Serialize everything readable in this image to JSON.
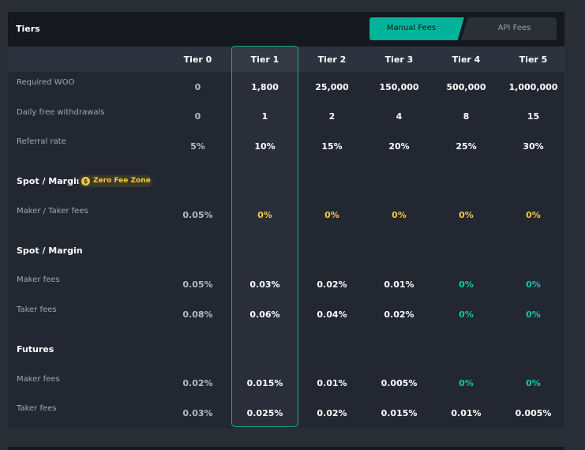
{
  "header": {
    "title": "Tiers"
  },
  "tabs": [
    {
      "label": "Manual Fees",
      "active": true
    },
    {
      "label": "API Fees",
      "active": false
    }
  ],
  "columns": [
    "Tier 0",
    "Tier 1",
    "Tier 2",
    "Tier 3",
    "Tier 4",
    "Tier 5"
  ],
  "general_rows": [
    {
      "label": "Required WOO",
      "values": [
        "0",
        "1,800",
        "25,000",
        "150,000",
        "500,000",
        "1,000,000"
      ]
    },
    {
      "label": "Daily free withdrawals",
      "values": [
        "0",
        "1",
        "2",
        "4",
        "8",
        "15"
      ]
    },
    {
      "label": "Referral rate",
      "values": [
        "5%",
        "10%",
        "15%",
        "20%",
        "25%",
        "30%"
      ]
    }
  ],
  "zero_fee_section": {
    "title": "Spot / Margin",
    "badge": "Zero Fee Zone",
    "badge_icon": "dollar-coin-icon",
    "rows": [
      {
        "label": "Maker / Taker fees",
        "values": [
          "0.05%",
          "0%",
          "0%",
          "0%",
          "0%",
          "0%"
        ]
      }
    ]
  },
  "spot_section": {
    "title": "Spot / Margin",
    "rows": [
      {
        "label": "Maker fees",
        "values": [
          "0.05%",
          "0.03%",
          "0.02%",
          "0.01%",
          "0%",
          "0%"
        ]
      },
      {
        "label": "Taker fees",
        "values": [
          "0.08%",
          "0.06%",
          "0.04%",
          "0.02%",
          "0%",
          "0%"
        ]
      }
    ]
  },
  "futures_section": {
    "title": "Futures",
    "rows": [
      {
        "label": "Maker fees",
        "values": [
          "0.02%",
          "0.015%",
          "0.01%",
          "0.005%",
          "0%",
          "0%"
        ]
      },
      {
        "label": "Taker fees",
        "values": [
          "0.03%",
          "0.025%",
          "0.02%",
          "0.015%",
          "0.01%",
          "0.005%"
        ]
      }
    ]
  },
  "colors": {
    "accent": "#00b39a",
    "highlight": "#f4c74a",
    "zero": "#12c8aa"
  }
}
